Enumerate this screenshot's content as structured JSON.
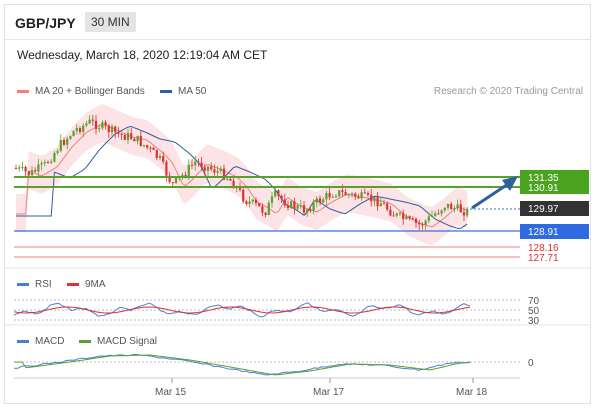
{
  "header": {
    "pair": "GBP/JPY",
    "timeframe": "30 MIN"
  },
  "date_line": "Wednesday, March 18, 2020 12:19:04 AM CET",
  "legend": {
    "ma20_label": "MA 20 + Bollinger Bands",
    "ma50_label": "MA 50",
    "credit": "Research © 2020 Trading Central",
    "rsi_label": "RSI",
    "rsi_ma_label": "9MA",
    "macd_label": "MACD",
    "macd_signal_label": "MACD Signal"
  },
  "colors": {
    "ma20": "#f08080",
    "ma50": "#2e5f9e",
    "bullish": "#5aa02c",
    "bearish": "#e03030",
    "last": "#333333",
    "support": "#3a6fd8",
    "bollinger_fill": "#fadadd"
  },
  "price_levels": {
    "resistance_1": "131.35",
    "resistance_2": "130.91",
    "last_price": "129.97",
    "support_1": "128.91",
    "support_2": "128.16",
    "support_3": "127.71"
  },
  "rsi_levels": [
    "70",
    "50",
    "30"
  ],
  "macd_level": "0",
  "x_ticks": [
    "Mar 15",
    "Mar 17",
    "Mar 18"
  ]
}
